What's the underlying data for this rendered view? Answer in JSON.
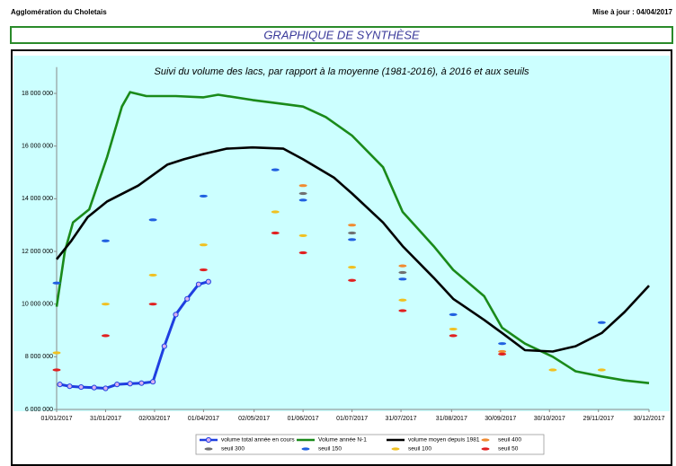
{
  "header": {
    "left": "Agglomération du Choletais",
    "right": "Mise à jour : 04/04/2017",
    "section": "GRAPHIQUE DE SYNTHÈSE"
  },
  "chart_data": {
    "type": "line",
    "title": "Suivi du volume des lacs, par rapport à la moyenne (1981-2016), à 2016 et aux seuils",
    "xlim": [
      "2017-01-01",
      "2017-12-30"
    ],
    "xticks": [
      {
        "value": "2017-01-01",
        "label": "01/01/2017"
      },
      {
        "value": "2017-01-31",
        "label": "31/01/2017"
      },
      {
        "value": "2017-03-02",
        "label": "02/03/2017"
      },
      {
        "value": "2017-04-01",
        "label": "01/04/2017"
      },
      {
        "value": "2017-05-02",
        "label": "02/05/2017"
      },
      {
        "value": "2017-06-01",
        "label": "01/06/2017"
      },
      {
        "value": "2017-07-01",
        "label": "01/07/2017"
      },
      {
        "value": "2017-07-31",
        "label": "31/07/2017"
      },
      {
        "value": "2017-08-31",
        "label": "31/08/2017"
      },
      {
        "value": "2017-09-30",
        "label": "30/09/2017"
      },
      {
        "value": "2017-10-30",
        "label": "30/10/2017"
      },
      {
        "value": "2017-11-29",
        "label": "29/11/2017"
      },
      {
        "value": "2017-12-30",
        "label": "30/12/2017"
      }
    ],
    "ylim": [
      6000000,
      19000000
    ],
    "yticks": [
      {
        "value": 6000000,
        "label": "6 000 000"
      },
      {
        "value": 8000000,
        "label": "8 000 000"
      },
      {
        "value": 10000000,
        "label": "10 000 000"
      },
      {
        "value": 12000000,
        "label": "12 000 000"
      },
      {
        "value": 14000000,
        "label": "14 000 000"
      },
      {
        "value": 16000000,
        "label": "16 000 000"
      },
      {
        "value": 18000000,
        "label": "18 000 000"
      }
    ],
    "series": [
      {
        "name": "volume total année en cours",
        "color": "#1f3fe0",
        "style": "line-marker",
        "x": [
          "2017-01-03",
          "2017-01-09",
          "2017-01-16",
          "2017-01-24",
          "2017-01-31",
          "2017-02-07",
          "2017-02-15",
          "2017-02-22",
          "2017-03-01",
          "2017-03-08",
          "2017-03-15",
          "2017-03-22",
          "2017-03-29",
          "2017-04-04"
        ],
        "values": [
          6950000,
          6880000,
          6850000,
          6830000,
          6800000,
          6950000,
          6980000,
          7000000,
          7050000,
          8400000,
          9600000,
          10200000,
          10750000,
          10850000
        ]
      },
      {
        "name": "Volume année N-1",
        "color": "#1a8a1a",
        "style": "line",
        "x": [
          "2017-01-01",
          "2017-01-06",
          "2017-01-11",
          "2017-01-21",
          "2017-02-01",
          "2017-02-10",
          "2017-02-15",
          "2017-02-25",
          "2017-03-15",
          "2017-04-01",
          "2017-04-10",
          "2017-05-01",
          "2017-05-20",
          "2017-06-01",
          "2017-06-15",
          "2017-07-01",
          "2017-07-20",
          "2017-08-01",
          "2017-08-20",
          "2017-09-01",
          "2017-09-20",
          "2017-10-01",
          "2017-10-15",
          "2017-11-01",
          "2017-11-15",
          "2017-12-01",
          "2017-12-15",
          "2017-12-30"
        ],
        "values": [
          9900000,
          12000000,
          13100000,
          13600000,
          15600000,
          17500000,
          18050000,
          17900000,
          17900000,
          17850000,
          17950000,
          17750000,
          17600000,
          17500000,
          17100000,
          16400000,
          15200000,
          13500000,
          12200000,
          11300000,
          10300000,
          9100000,
          8500000,
          8000000,
          7450000,
          7250000,
          7100000,
          7000000
        ]
      },
      {
        "name": "volume moyen depuis 1981",
        "color": "#000000",
        "style": "line",
        "x": [
          "2017-01-01",
          "2017-01-10",
          "2017-01-20",
          "2017-02-01",
          "2017-02-20",
          "2017-03-10",
          "2017-03-20",
          "2017-04-01",
          "2017-04-15",
          "2017-05-01",
          "2017-05-20",
          "2017-06-01",
          "2017-06-20",
          "2017-07-01",
          "2017-07-20",
          "2017-08-01",
          "2017-08-20",
          "2017-09-01",
          "2017-09-20",
          "2017-10-01",
          "2017-10-15",
          "2017-11-01",
          "2017-11-15",
          "2017-12-01",
          "2017-12-15",
          "2017-12-30"
        ],
        "values": [
          11700000,
          12400000,
          13300000,
          13900000,
          14500000,
          15300000,
          15500000,
          15700000,
          15900000,
          15950000,
          15900000,
          15500000,
          14800000,
          14200000,
          13100000,
          12200000,
          11000000,
          10200000,
          9400000,
          8900000,
          8250000,
          8200000,
          8400000,
          8900000,
          9700000,
          10700000
        ]
      },
      {
        "name": "seuil 400",
        "color": "#f08a30",
        "style": "marker",
        "x": [
          "2017-01-01",
          "2017-01-31",
          "2017-03-01",
          "2017-04-01",
          "2017-05-15",
          "2017-06-01",
          "2017-07-01",
          "2017-08-01",
          "2017-09-01",
          "2017-10-01",
          "2017-11-01",
          "2017-12-01"
        ],
        "values": [
          null,
          null,
          null,
          null,
          null,
          14500000,
          13000000,
          11450000,
          null,
          8200000,
          null,
          null
        ]
      },
      {
        "name": "seuil 300",
        "color": "#707070",
        "style": "marker",
        "x": [
          "2017-01-01",
          "2017-01-31",
          "2017-03-01",
          "2017-04-01",
          "2017-05-15",
          "2017-06-01",
          "2017-07-01",
          "2017-08-01",
          "2017-09-01",
          "2017-10-01",
          "2017-11-01",
          "2017-12-01"
        ],
        "values": [
          null,
          null,
          null,
          null,
          null,
          14200000,
          12700000,
          11200000,
          null,
          null,
          null,
          null
        ]
      },
      {
        "name": "seuil 150",
        "color": "#2060e0",
        "style": "marker",
        "x": [
          "2017-01-01",
          "2017-01-31",
          "2017-03-01",
          "2017-04-01",
          "2017-05-15",
          "2017-06-01",
          "2017-07-01",
          "2017-08-01",
          "2017-09-01",
          "2017-10-01",
          "2017-11-01",
          "2017-12-01"
        ],
        "values": [
          10800000,
          12400000,
          13200000,
          14100000,
          15100000,
          13950000,
          12450000,
          10950000,
          9600000,
          8500000,
          null,
          9300000
        ]
      },
      {
        "name": "seuil 100",
        "color": "#f0c020",
        "style": "marker",
        "x": [
          "2017-01-01",
          "2017-01-31",
          "2017-03-01",
          "2017-04-01",
          "2017-05-15",
          "2017-06-01",
          "2017-07-01",
          "2017-08-01",
          "2017-09-01",
          "2017-10-01",
          "2017-11-01",
          "2017-12-01"
        ],
        "values": [
          8150000,
          10000000,
          11100000,
          12250000,
          13500000,
          12600000,
          11400000,
          10150000,
          9050000,
          null,
          7500000,
          7500000
        ]
      },
      {
        "name": "seuil 50",
        "color": "#e02020",
        "style": "marker",
        "x": [
          "2017-01-01",
          "2017-01-31",
          "2017-03-01",
          "2017-04-01",
          "2017-05-15",
          "2017-06-01",
          "2017-07-01",
          "2017-08-01",
          "2017-09-01",
          "2017-10-01",
          "2017-11-01",
          "2017-12-01"
        ],
        "values": [
          7500000,
          8800000,
          10000000,
          11300000,
          12700000,
          11950000,
          10900000,
          9750000,
          8800000,
          8100000,
          null,
          null
        ]
      }
    ]
  }
}
